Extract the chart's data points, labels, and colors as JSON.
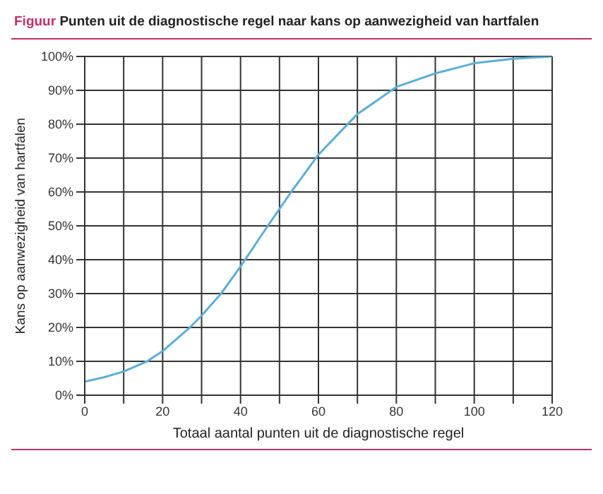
{
  "chart_data": {
    "type": "line",
    "title": "Figuur Punten uit de diagnostische regel naar kans op aanwezigheid van hartfalen",
    "xlabel": "Totaal aantal punten uit de diagnostische regel",
    "ylabel": "Kans op aanwezigheid van hartfalen",
    "x": [
      0,
      5,
      10,
      16,
      20,
      27,
      30,
      35,
      40,
      47,
      50,
      53,
      60,
      65,
      70,
      80,
      90,
      100,
      110,
      120
    ],
    "series": [
      {
        "color": "#5bafd6",
        "values": [
          4,
          5.3,
          7,
          10,
          13,
          20,
          23.5,
          30,
          38,
          50,
          55,
          60,
          71,
          77,
          83,
          91,
          95,
          98,
          99.3,
          100
        ]
      }
    ],
    "xlim": [
      0,
      120
    ],
    "xticks": [
      0,
      {
        "value": 10,
        "label": null
      },
      20,
      {
        "value": 30,
        "label": null
      },
      40,
      {
        "value": 50,
        "label": null
      },
      60,
      {
        "value": 70,
        "label": null
      },
      80,
      {
        "value": 90,
        "label": null
      },
      100,
      {
        "value": 110,
        "label": null
      },
      120
    ],
    "ylim": [
      0,
      100
    ],
    "yticks": [
      {
        "value": 0,
        "label": "0%"
      },
      {
        "value": 10,
        "label": "10%"
      },
      {
        "value": 20,
        "label": "20%"
      },
      {
        "value": 30,
        "label": "30%"
      },
      {
        "value": 40,
        "label": "40%"
      },
      {
        "value": 50,
        "label": "50%"
      },
      {
        "value": 60,
        "label": "60%"
      },
      {
        "value": 70,
        "label": "70%"
      },
      {
        "value": 80,
        "label": "80%"
      },
      {
        "value": 90,
        "label": "90%"
      },
      {
        "value": 100,
        "label": "100%"
      }
    ],
    "grid": true,
    "legend": false,
    "marker": "none",
    "line_style": "solid"
  }
}
